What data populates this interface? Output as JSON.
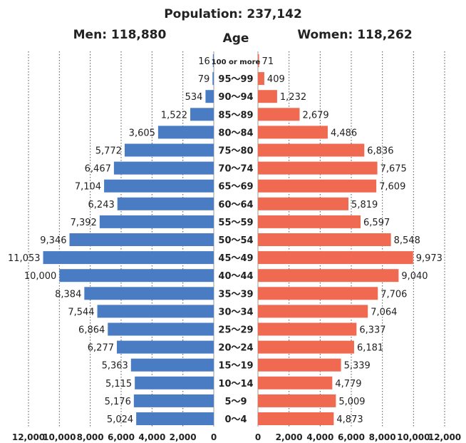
{
  "chart_data": {
    "type": "bar",
    "title": "Population: 237,142",
    "men_label": "Men: 118,880",
    "women_label": "Women: 118,262",
    "age_header": "Age",
    "categories": [
      "100 or more",
      "95～99",
      "90～94",
      "85～89",
      "80～84",
      "75～80",
      "70～74",
      "65～69",
      "60～64",
      "55～59",
      "50～54",
      "45～49",
      "40～44",
      "35～39",
      "30～34",
      "25～29",
      "20～24",
      "15～19",
      "10～14",
      "5～9",
      "0～4"
    ],
    "series": [
      {
        "name": "Men: 118,880",
        "side": "left",
        "color": "#4a7cc4",
        "values": [
          16,
          79,
          534,
          1522,
          3605,
          5772,
          6467,
          7104,
          6243,
          7392,
          9346,
          11053,
          10000,
          8384,
          7544,
          6864,
          6277,
          5363,
          5115,
          5176,
          5024
        ],
        "labels": [
          "16",
          "79",
          "534",
          "1,522",
          "3,605",
          "5,772",
          "6,467",
          "7,104",
          "6,243",
          "7,392",
          "9,346",
          "11,053",
          "10,000",
          "8,384",
          "7,544",
          "6,864",
          "6,277",
          "5,363",
          "5,115",
          "5,176",
          "5,024"
        ]
      },
      {
        "name": "Women: 118,262",
        "side": "right",
        "color": "#f06a52",
        "values": [
          71,
          409,
          1232,
          2679,
          4486,
          6836,
          7675,
          7609,
          5819,
          6597,
          8548,
          9973,
          9040,
          7706,
          7064,
          6337,
          6181,
          5339,
          4779,
          5009,
          4873
        ],
        "labels": [
          "71",
          "409",
          "1,232",
          "2,679",
          "4,486",
          "6,836",
          "7,675",
          "7,609",
          "5,819",
          "6,597",
          "8,548",
          "9,973",
          "9,040",
          "7,706",
          "7,064",
          "6,337",
          "6,181",
          "5,339",
          "4,779",
          "5,009",
          "4,873"
        ]
      }
    ],
    "xlim": [
      0,
      12000
    ],
    "left_ticks": [
      "12,000",
      "10,000",
      "8,000",
      "6,000",
      "4,000",
      "2,000",
      "0"
    ],
    "right_ticks": [
      "0",
      "2,000",
      "4,000",
      "6,000",
      "8,000",
      "10,000",
      "12,000"
    ],
    "grid": true
  }
}
